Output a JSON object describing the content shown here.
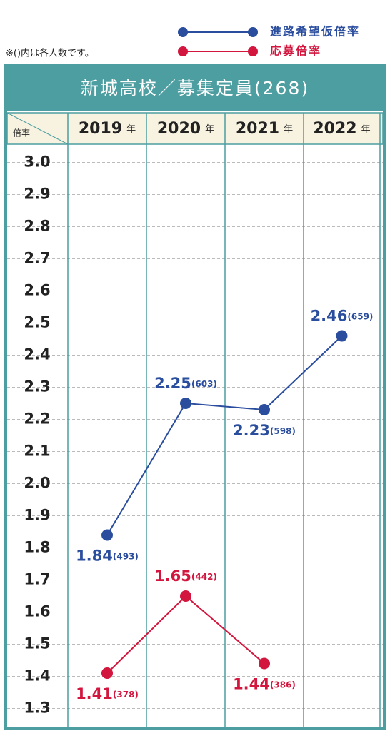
{
  "chart_data": {
    "type": "line",
    "title": "新城高校／募集定員(268)",
    "note": "※()内は各人数です。",
    "y_label": "倍率",
    "categories": [
      "2019",
      "2020",
      "2021",
      "2022"
    ],
    "category_suffix": "年",
    "series": [
      {
        "name": "進路希望仮倍率",
        "color": "#2a4d9e",
        "values": [
          1.84,
          2.25,
          2.23,
          2.46
        ],
        "count_labels": [
          "(493)",
          "(603)",
          "(598)",
          "(659)"
        ]
      },
      {
        "name": "応募倍率",
        "color": "#d2163e",
        "values": [
          1.41,
          1.65,
          1.44,
          null
        ],
        "count_labels": [
          "(378)",
          "(442)",
          "(386)",
          null
        ]
      }
    ],
    "ylim": [
      1.25,
      3.05
    ],
    "yticks": [
      1.3,
      1.4,
      1.5,
      1.6,
      1.7,
      1.8,
      1.9,
      {
        "value": 2,
        "label": "2.0"
      },
      2.1,
      2.2,
      2.3,
      2.4,
      2.5,
      2.6,
      2.7,
      2.8,
      2.9,
      {
        "value": 3,
        "label": "3.0"
      }
    ],
    "grid": true,
    "frame_color": "#4c9ea1"
  }
}
